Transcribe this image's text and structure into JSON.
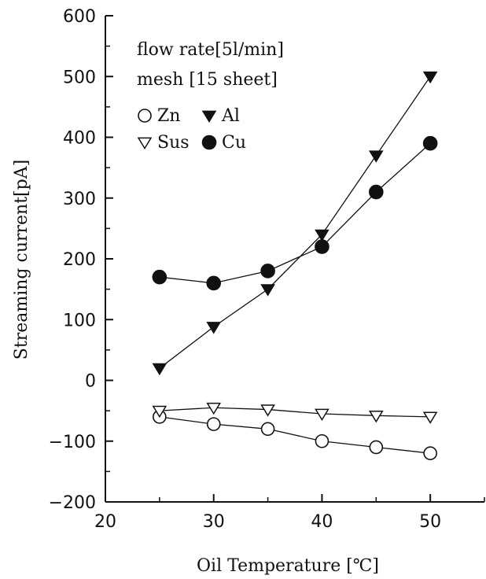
{
  "chart_data": {
    "type": "scatter",
    "title": "",
    "xlabel": "Oil Temperature [℃]",
    "ylabel": "Streaming current[pA]",
    "xlim": [
      20,
      55
    ],
    "ylim": [
      -200,
      600
    ],
    "x_ticks": [
      20,
      30,
      40,
      50
    ],
    "y_ticks": [
      -200,
      -100,
      0,
      100,
      200,
      300,
      400,
      500,
      600
    ],
    "x_tick_labels": [
      "20",
      "30",
      "40",
      "50"
    ],
    "y_tick_labels": [
      "-200",
      "-100",
      "0",
      "100",
      "200",
      "300",
      "400",
      "500",
      "600"
    ],
    "grid": false,
    "legend_position": "top-left",
    "conditions": [
      "flow rate[5l/min]",
      "mesh [15 sheet]"
    ],
    "series": [
      {
        "name": "Zn",
        "marker": "open-circle",
        "x": [
          25,
          30,
          35,
          40,
          45,
          50
        ],
        "y": [
          -60,
          -72,
          -80,
          -100,
          -110,
          -120
        ]
      },
      {
        "name": "Al",
        "marker": "filled-triangle-down",
        "x": [
          25,
          30,
          35,
          40,
          45,
          50
        ],
        "y": [
          20,
          88,
          150,
          240,
          370,
          500
        ]
      },
      {
        "name": "Sus",
        "marker": "open-triangle-down",
        "x": [
          25,
          30,
          35,
          40,
          45,
          50
        ],
        "y": [
          -50,
          -45,
          -48,
          -55,
          -58,
          -60
        ]
      },
      {
        "name": "Cu",
        "marker": "filled-circle",
        "x": [
          25,
          30,
          35,
          40,
          45,
          50
        ],
        "y": [
          170,
          160,
          180,
          220,
          310,
          390
        ]
      }
    ]
  }
}
